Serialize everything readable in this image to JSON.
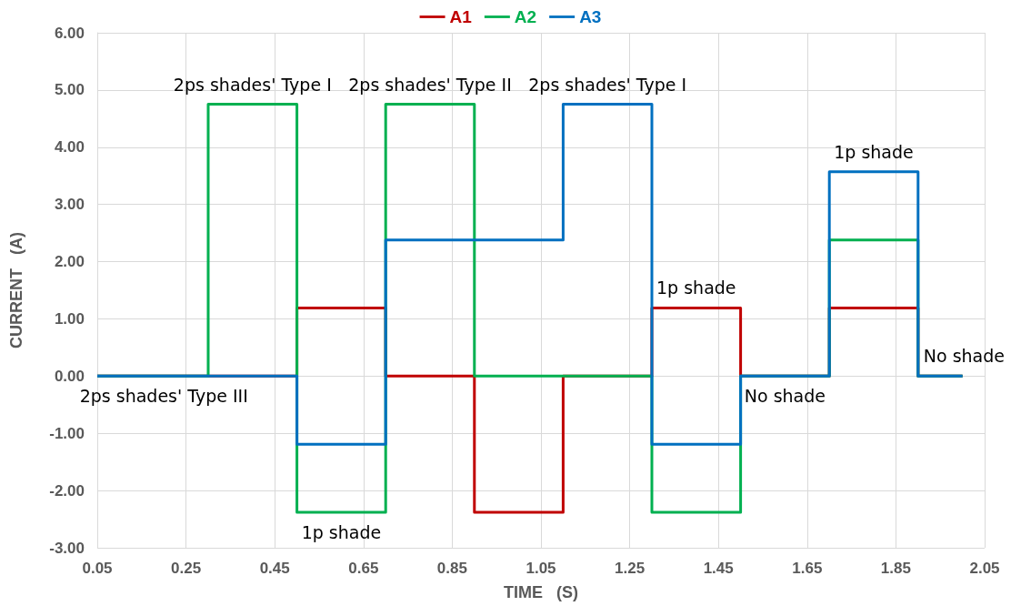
{
  "chart_data": {
    "type": "step",
    "xlabel": "TIME   (S)",
    "ylabel": "CURRENT   (A)",
    "x": [
      0.05,
      0.3,
      0.5,
      0.7,
      0.9,
      1.1,
      1.3,
      1.5,
      1.7,
      1.9,
      2.0
    ],
    "series": [
      {
        "name": "A1",
        "color": "#c00000",
        "values": [
          0,
          0,
          1.19,
          0,
          -2.38,
          0,
          1.19,
          0,
          1.19,
          0,
          0
        ]
      },
      {
        "name": "A2",
        "color": "#00b050",
        "values": [
          0,
          4.75,
          -2.38,
          4.75,
          0,
          0,
          -2.38,
          0,
          2.38,
          0,
          0
        ]
      },
      {
        "name": "A3",
        "color": "#0070c0",
        "values": [
          0,
          0,
          -1.19,
          2.38,
          2.38,
          4.75,
          -1.19,
          0,
          3.57,
          0,
          0
        ]
      }
    ],
    "xlim": [
      0.05,
      2.05
    ],
    "xticks": [
      0.05,
      0.25,
      0.45,
      0.65,
      0.85,
      1.05,
      1.25,
      1.45,
      1.65,
      1.85,
      2.05
    ],
    "ylim": [
      -3,
      6
    ],
    "yticks": [
      {
        "value": -3,
        "label": "-3.00"
      },
      {
        "value": -2,
        "label": "-2.00"
      },
      {
        "value": -1,
        "label": "-1.00"
      },
      {
        "value": 0,
        "label": "0.00"
      },
      {
        "value": 1,
        "label": "1.00"
      },
      {
        "value": 2,
        "label": "2.00"
      },
      {
        "value": 3,
        "label": "3.00"
      },
      {
        "value": 4,
        "label": "4.00"
      },
      {
        "value": 5,
        "label": "5.00"
      },
      {
        "value": 6,
        "label": "6.00"
      }
    ],
    "grid": true,
    "legend": "top",
    "annotations": [
      {
        "text": "2ps shades' Type I",
        "x": 0.4,
        "y": 4.75
      },
      {
        "text": "2ps shades' Type II",
        "x": 0.8,
        "y": 4.75
      },
      {
        "text": "2ps shades' Type I",
        "x": 1.2,
        "y": 4.75
      },
      {
        "text": "1p shade",
        "x": 1.4,
        "y": 1.19
      },
      {
        "text": "1p shade",
        "x": 1.8,
        "y": 3.57
      },
      {
        "text": "2ps shades' Type III",
        "x": 0.2,
        "y": 0
      },
      {
        "text": "1p shade",
        "x": 0.6,
        "y": -2.38
      },
      {
        "text": "No shade",
        "x": 1.6,
        "y": 0
      },
      {
        "text": "No shade",
        "x": 1.95,
        "y": 0
      }
    ]
  }
}
